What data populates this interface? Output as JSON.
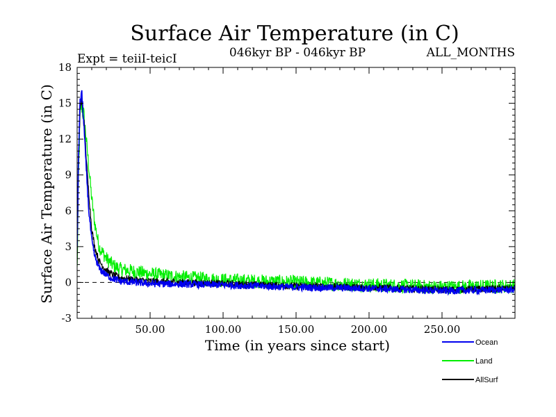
{
  "chart_data": {
    "type": "line",
    "title": "Surface Air Temperature (in C)",
    "subtitle_left": "Expt = teiiI-teicI",
    "subtitle_center": "046kyr BP - 046kyr BP",
    "subtitle_right": "ALL_MONTHS",
    "xlabel": "Time (in years since start)",
    "ylabel": "Surface Air Temperature (in C)",
    "xlim": [
      0,
      300
    ],
    "ylim": [
      -3,
      18
    ],
    "xticks": [
      50,
      100,
      150,
      200,
      250
    ],
    "xtick_labels": [
      "50.00",
      "100.00",
      "150.00",
      "200.00",
      "250.00"
    ],
    "yticks": [
      -3,
      0,
      3,
      6,
      9,
      12,
      15,
      18
    ],
    "ytick_labels": [
      "-3",
      "0",
      "3",
      "6",
      "9",
      "12",
      "15",
      "18"
    ],
    "reference_line": 0,
    "series": [
      {
        "name": "Land",
        "color": "#00ee00",
        "noise": 0.6,
        "points": [
          [
            0,
            1.0
          ],
          [
            1,
            9.0
          ],
          [
            2,
            14.0
          ],
          [
            3,
            15.0
          ],
          [
            5,
            13.5
          ],
          [
            7,
            11.0
          ],
          [
            10,
            7.0
          ],
          [
            12,
            5.0
          ],
          [
            15,
            3.0
          ],
          [
            20,
            2.0
          ],
          [
            25,
            1.4
          ],
          [
            30,
            1.1
          ],
          [
            40,
            0.9
          ],
          [
            50,
            0.7
          ],
          [
            75,
            0.4
          ],
          [
            100,
            0.2
          ],
          [
            150,
            0.0
          ],
          [
            200,
            -0.2
          ],
          [
            250,
            -0.4
          ],
          [
            300,
            -0.3
          ]
        ]
      },
      {
        "name": "AllSurf",
        "color": "#000000",
        "noise": 0.3,
        "points": [
          [
            0,
            2.0
          ],
          [
            1,
            10.0
          ],
          [
            2,
            14.5
          ],
          [
            3,
            15.2
          ],
          [
            5,
            13.0
          ],
          [
            7,
            9.0
          ],
          [
            10,
            4.5
          ],
          [
            12,
            3.0
          ],
          [
            15,
            1.8
          ],
          [
            20,
            1.0
          ],
          [
            25,
            0.6
          ],
          [
            30,
            0.4
          ],
          [
            40,
            0.2
          ],
          [
            50,
            0.1
          ],
          [
            100,
            -0.1
          ],
          [
            150,
            -0.3
          ],
          [
            200,
            -0.4
          ],
          [
            250,
            -0.6
          ],
          [
            300,
            -0.5
          ]
        ]
      },
      {
        "name": "Ocean",
        "color": "#0000ee",
        "noise": 0.3,
        "points": [
          [
            0,
            3.0
          ],
          [
            1,
            11.0
          ],
          [
            2,
            15.0
          ],
          [
            3,
            16.0
          ],
          [
            4,
            14.5
          ],
          [
            6,
            10.0
          ],
          [
            8,
            6.0
          ],
          [
            10,
            3.5
          ],
          [
            12,
            2.2
          ],
          [
            15,
            1.2
          ],
          [
            20,
            0.6
          ],
          [
            25,
            0.3
          ],
          [
            30,
            0.1
          ],
          [
            40,
            0.0
          ],
          [
            50,
            -0.1
          ],
          [
            100,
            -0.2
          ],
          [
            150,
            -0.4
          ],
          [
            200,
            -0.5
          ],
          [
            250,
            -0.7
          ],
          [
            300,
            -0.6
          ]
        ]
      }
    ],
    "legend": [
      {
        "name": "Ocean",
        "color": "#0000ee"
      },
      {
        "name": "Land",
        "color": "#00ee00"
      },
      {
        "name": "AllSurf",
        "color": "#000000"
      }
    ]
  }
}
